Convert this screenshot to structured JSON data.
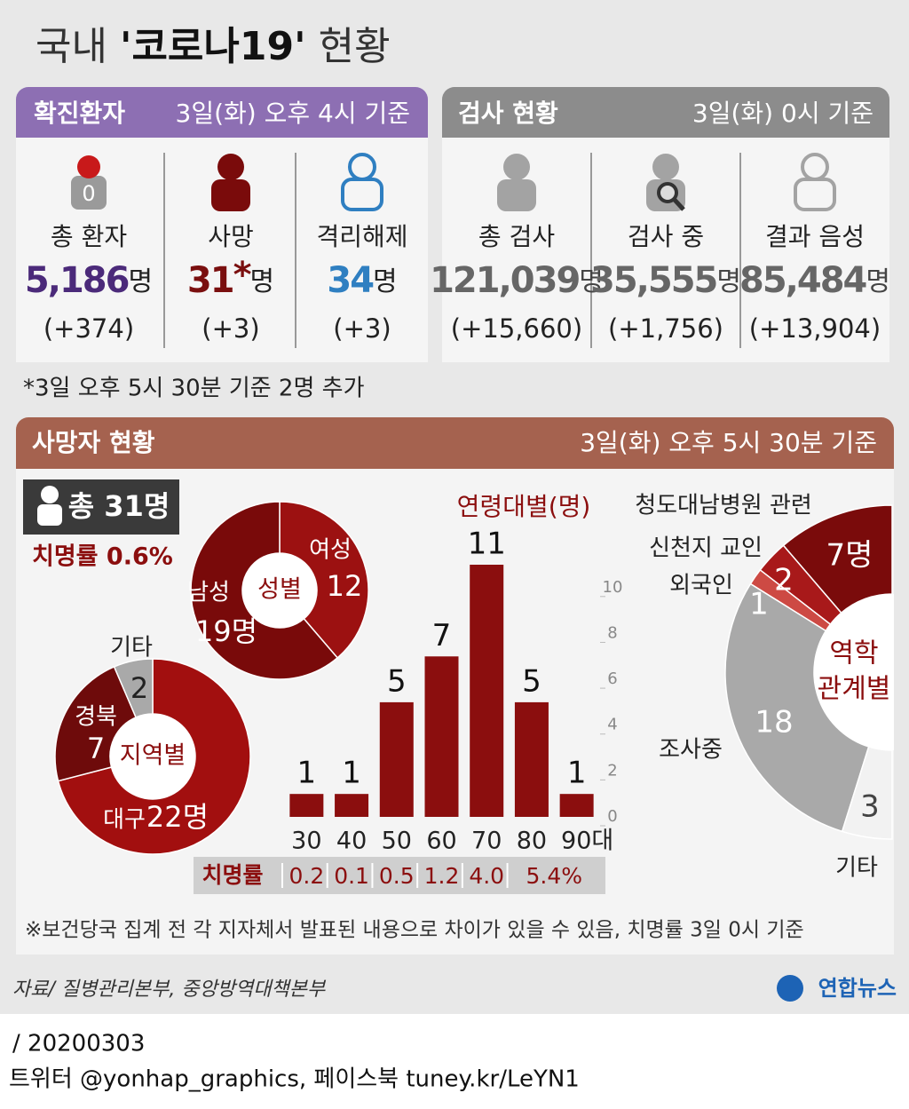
{
  "title": [
    "국내",
    "'코로나19'",
    "현황"
  ],
  "confirmed": {
    "header": "확진환자",
    "basis": "3일(화) 오후 4시 기준",
    "items": [
      {
        "icon_text": "0",
        "label": "총 환자",
        "value": "5,186",
        "unit": "명",
        "change": "(+374)"
      },
      {
        "label": "사망",
        "value": "31",
        "mark": "*",
        "unit": "명",
        "change": "(+3)"
      },
      {
        "label": "격리해제",
        "value": "34",
        "unit": "명",
        "change": "(+3)"
      }
    ]
  },
  "tests": {
    "header": "검사 현황",
    "basis": "3일(화) 0시 기준",
    "items": [
      {
        "label": "총 검사",
        "value": "121,039",
        "unit": "명",
        "change": "(+15,660)"
      },
      {
        "label": "검사 중",
        "value": "35,555",
        "unit": "명",
        "change": "(+1,756)"
      },
      {
        "label": "결과 음성",
        "value": "85,484",
        "unit": "명",
        "change": "(+13,904)"
      }
    ]
  },
  "footnote": "*3일 오후 5시 30분 기준 2명 추가",
  "deaths": {
    "header": "사망자 현황",
    "basis": "3일(화) 오후 5시 30분 기준",
    "total": "총 31명",
    "fatality": "치명률 0.6%",
    "age_fatality": {
      "label": "치명률",
      "values": [
        "0.2",
        "0.1",
        "0.5",
        "1.2",
        "4.0",
        "5.4%"
      ]
    },
    "note": "※보건당국 집계 전 각 지자체서 발표된 내용으로 차이가 있을 수 있음, 치명률 3일 0시 기준"
  },
  "chart_data": [
    {
      "type": "donut",
      "center_label": [
        "성별"
      ],
      "categories": [
        "여성",
        "남성"
      ],
      "values": [
        12,
        19
      ],
      "value_labels": [
        "12",
        "19명"
      ],
      "colors": [
        "#9c1111",
        "#790a0a"
      ]
    },
    {
      "type": "donut",
      "center_label": [
        "지역별"
      ],
      "categories": [
        "대구",
        "경북",
        "기타"
      ],
      "values": [
        22,
        7,
        2
      ],
      "value_labels": [
        "22명",
        "7",
        "2"
      ],
      "colors": [
        "#a20f0f",
        "#6e0b0b",
        "#a9a9a9"
      ]
    },
    {
      "type": "bar",
      "title": "연령대별(명)",
      "categories": [
        "30",
        "40",
        "50",
        "60",
        "70",
        "80",
        "90대"
      ],
      "values": [
        1,
        1,
        5,
        7,
        11,
        5,
        1
      ],
      "color": "#8b0e0e",
      "ylim": [
        0,
        11
      ],
      "yticks": [
        0,
        2,
        4,
        6,
        8,
        10
      ]
    },
    {
      "type": "semi-donut",
      "center_label": [
        "역학",
        "관계별"
      ],
      "categories": [
        "청도대남병원 관련",
        "신천지 교인",
        "외국인",
        "조사중",
        "기타"
      ],
      "values": [
        7,
        2,
        1,
        18,
        3
      ],
      "value_labels": [
        "7명",
        "2",
        "1",
        "18",
        "3"
      ],
      "colors": [
        "#7a0b0b",
        "#a8191a",
        "#cd4a44",
        "#a9a9a9",
        "#f2f2f2"
      ]
    }
  ],
  "source": "자료/ 질병관리본부, 중앙방역대책본부",
  "logo": "연합뉴스",
  "date": "/ 20200303",
  "social": "트위터 @yonhap_graphics, 페이스북 tuney.kr/LeYN1"
}
